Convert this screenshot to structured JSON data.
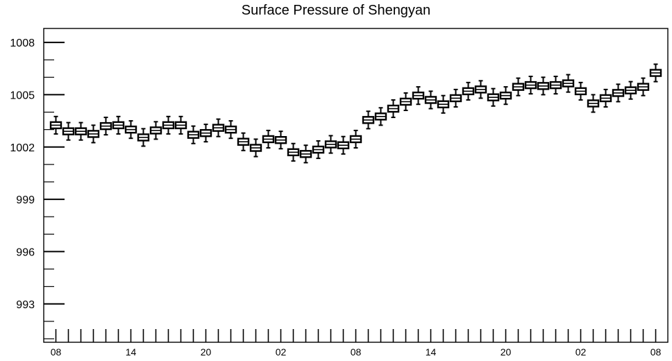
{
  "chart_data": {
    "type": "box",
    "title": "Surface Pressure of Shengyan",
    "xlabel": "",
    "ylabel": "",
    "ylim": [
      990.8,
      1008.8
    ],
    "y_ticks": [
      993,
      996,
      999,
      1002,
      1005,
      1008
    ],
    "x_tick_labels": [
      "08",
      "14",
      "20",
      "02",
      "08",
      "14",
      "20",
      "02",
      "08"
    ],
    "x_tick_label_hours": [
      0,
      6,
      12,
      18,
      24,
      30,
      36,
      42,
      48
    ],
    "hours": [
      0,
      1,
      2,
      3,
      4,
      5,
      6,
      7,
      8,
      9,
      10,
      11,
      12,
      13,
      14,
      15,
      16,
      17,
      18,
      19,
      20,
      21,
      22,
      23,
      24,
      25,
      26,
      27,
      28,
      29,
      30,
      31,
      32,
      33,
      34,
      35,
      36,
      37,
      38,
      39,
      40,
      41,
      42,
      43,
      44,
      45,
      46,
      47,
      48
    ],
    "median": [
      1003.25,
      1002.9,
      1002.9,
      1002.75,
      1003.2,
      1003.25,
      1003.0,
      1002.55,
      1002.95,
      1003.25,
      1003.25,
      1002.7,
      1002.8,
      1003.1,
      1003.0,
      1002.3,
      1001.95,
      1002.45,
      1002.4,
      1001.7,
      1001.6,
      1001.85,
      1002.15,
      1002.1,
      1002.45,
      1003.55,
      1003.75,
      1004.2,
      1004.6,
      1004.95,
      1004.7,
      1004.45,
      1004.8,
      1005.2,
      1005.3,
      1004.85,
      1004.95,
      1005.45,
      1005.55,
      1005.5,
      1005.55,
      1005.65,
      1005.2,
      1004.5,
      1004.8,
      1005.1,
      1005.25,
      1005.45,
      1006.25
    ],
    "box_half": 0.18,
    "whisker_half": 0.5,
    "grid": false,
    "legend": "none"
  }
}
